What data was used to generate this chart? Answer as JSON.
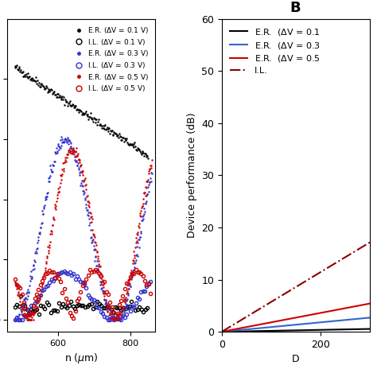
{
  "title_B": "B",
  "ylabel_B": "Device performance (dB)",
  "xlabel_B": "D",
  "xlim_B": [
    0,
    300
  ],
  "ylim_B": [
    0,
    60
  ],
  "yticks_B": [
    0,
    10,
    20,
    30,
    40,
    50,
    60
  ],
  "xticks_B": [
    0,
    200
  ],
  "x_max_B": 310,
  "lines_B": [
    {
      "label": "E.R.  (ΔV = 0.1",
      "color": "#000000",
      "linestyle": "solid",
      "slope": 0.0018,
      "linewidth": 1.5
    },
    {
      "label": "E.R.  (ΔV = 0.3",
      "color": "#3366cc",
      "linestyle": "solid",
      "slope": 0.009,
      "linewidth": 1.5
    },
    {
      "label": "E.R.  (ΔV = 0.5",
      "color": "#cc0000",
      "linestyle": "solid",
      "slope": 0.018,
      "linewidth": 1.5
    },
    {
      "label": "I.L.",
      "color": "#8b0000",
      "linestyle": "dashdot",
      "slope": 0.057,
      "linewidth": 1.5
    }
  ],
  "legend_labels_B": [
    "E.R.  (ΔV = 0.1",
    "E.R.  (ΔV = 0.3",
    "E.R.  (ΔV = 0.5",
    "I.L."
  ],
  "background_color": "#ffffff",
  "fig_facecolor": "#f0f0f0"
}
